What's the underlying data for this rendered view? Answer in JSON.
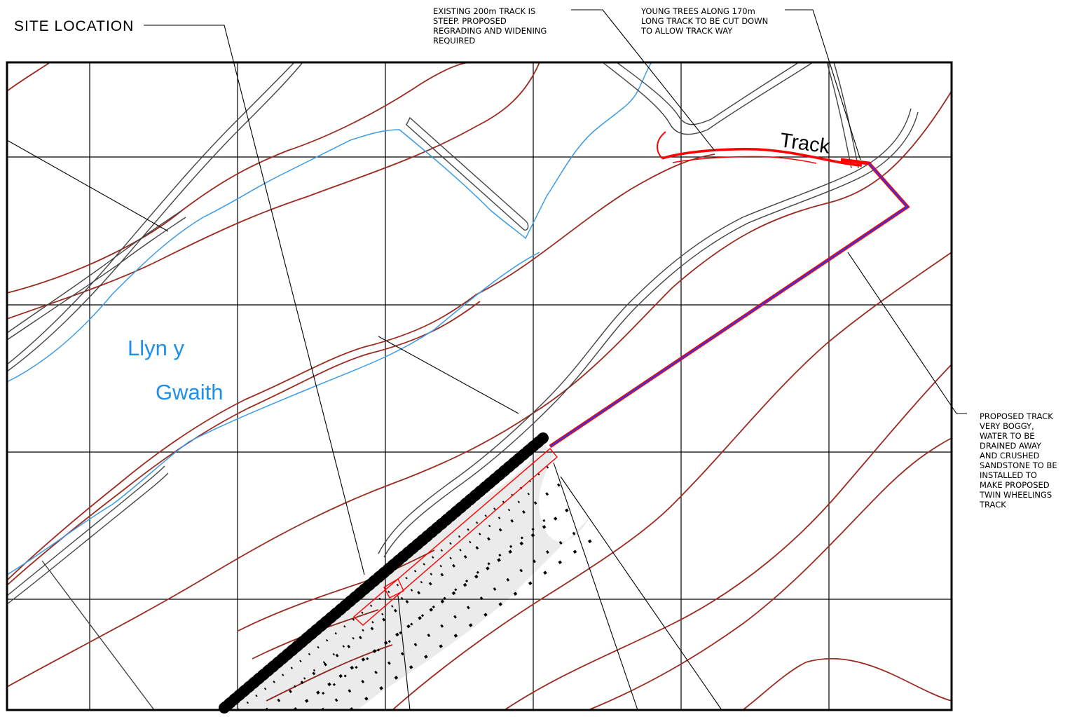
{
  "labels": {
    "site_location": "SITE  LOCATION",
    "lake_line1": "Llyn y",
    "lake_line2": "Gwaith",
    "track": "Track"
  },
  "notes": {
    "existing_track": [
      "EXISTING 200m TRACK IS",
      "STEEP. PROPOSED",
      "REGRADING AND WIDENING",
      "REQUIRED"
    ],
    "young_trees": [
      "YOUNG TREES ALONG 170m",
      "LONG TRACK TO BE CUT DOWN",
      "TO ALLOW TRACK WAY"
    ],
    "proposed_track": [
      "PROPOSED TRACK",
      "VERY BOGGY,",
      "WATER TO BE",
      "DRAINED AWAY",
      "AND CRUSHED",
      "SANDSTONE TO BE",
      "INSTALLED TO",
      "MAKE PROPOSED",
      "TWIN WHEELINGS",
      "TRACK"
    ]
  },
  "colors": {
    "contour": "#9b2b20",
    "water": "#3b9be6",
    "proposed_red": "#ff0000",
    "proposed_blue": "#1a3cff",
    "grid": "#000000",
    "existing_track": "#444444"
  }
}
